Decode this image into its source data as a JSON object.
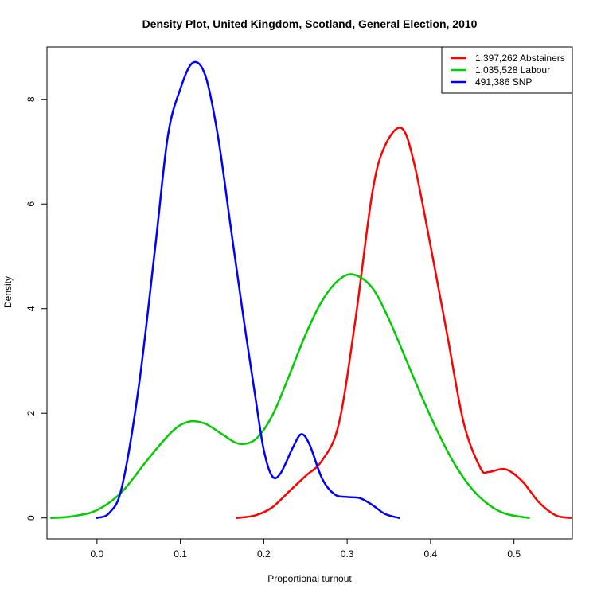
{
  "chart_data": {
    "type": "line",
    "title": "Density Plot, United Kingdom, Scotland, General Election, 2010",
    "xlabel": "Proportional turnout",
    "ylabel": "Density",
    "xlim": [
      -0.06,
      0.57
    ],
    "ylim": [
      -0.4,
      9.0
    ],
    "x_ticks": [
      0.0,
      0.1,
      0.2,
      0.3,
      0.4,
      0.5
    ],
    "x_tick_labels": [
      "0.0",
      "0.1",
      "0.2",
      "0.3",
      "0.4",
      "0.5"
    ],
    "y_ticks": [
      0,
      2,
      4,
      6,
      8
    ],
    "y_tick_labels": [
      "0",
      "2",
      "4",
      "6",
      "8"
    ],
    "grid": false,
    "legend_position": "top-right",
    "series": [
      {
        "name": "1,397,262 Abstainers",
        "color": "#ff0000",
        "points": [
          [
            0.168,
            0.0
          ],
          [
            0.19,
            0.05
          ],
          [
            0.21,
            0.2
          ],
          [
            0.23,
            0.5
          ],
          [
            0.25,
            0.8
          ],
          [
            0.27,
            1.1
          ],
          [
            0.29,
            1.8
          ],
          [
            0.31,
            3.8
          ],
          [
            0.33,
            6.2
          ],
          [
            0.345,
            7.1
          ],
          [
            0.365,
            7.45
          ],
          [
            0.38,
            6.8
          ],
          [
            0.4,
            5.2
          ],
          [
            0.42,
            3.5
          ],
          [
            0.44,
            1.8
          ],
          [
            0.46,
            0.95
          ],
          [
            0.47,
            0.88
          ],
          [
            0.49,
            0.93
          ],
          [
            0.51,
            0.7
          ],
          [
            0.53,
            0.3
          ],
          [
            0.55,
            0.05
          ],
          [
            0.568,
            0.0
          ]
        ]
      },
      {
        "name": "1,035,528 Labour",
        "color": "#00cd00",
        "points": [
          [
            -0.055,
            0.0
          ],
          [
            -0.03,
            0.03
          ],
          [
            0.0,
            0.15
          ],
          [
            0.03,
            0.5
          ],
          [
            0.06,
            1.1
          ],
          [
            0.09,
            1.65
          ],
          [
            0.11,
            1.84
          ],
          [
            0.13,
            1.8
          ],
          [
            0.15,
            1.6
          ],
          [
            0.17,
            1.42
          ],
          [
            0.19,
            1.5
          ],
          [
            0.21,
            1.95
          ],
          [
            0.23,
            2.7
          ],
          [
            0.25,
            3.5
          ],
          [
            0.27,
            4.15
          ],
          [
            0.29,
            4.55
          ],
          [
            0.308,
            4.65
          ],
          [
            0.33,
            4.4
          ],
          [
            0.35,
            3.8
          ],
          [
            0.37,
            3.05
          ],
          [
            0.39,
            2.3
          ],
          [
            0.41,
            1.6
          ],
          [
            0.43,
            1.0
          ],
          [
            0.45,
            0.55
          ],
          [
            0.47,
            0.25
          ],
          [
            0.49,
            0.08
          ],
          [
            0.518,
            0.0
          ]
        ]
      },
      {
        "name": "491,386 SNP",
        "color": "#0000ff",
        "points": [
          [
            0.0,
            0.0
          ],
          [
            0.015,
            0.1
          ],
          [
            0.03,
            0.6
          ],
          [
            0.05,
            2.5
          ],
          [
            0.07,
            5.2
          ],
          [
            0.085,
            7.3
          ],
          [
            0.1,
            8.2
          ],
          [
            0.115,
            8.7
          ],
          [
            0.13,
            8.45
          ],
          [
            0.145,
            7.3
          ],
          [
            0.16,
            5.6
          ],
          [
            0.175,
            3.9
          ],
          [
            0.19,
            2.3
          ],
          [
            0.2,
            1.3
          ],
          [
            0.21,
            0.8
          ],
          [
            0.22,
            0.85
          ],
          [
            0.235,
            1.35
          ],
          [
            0.245,
            1.6
          ],
          [
            0.255,
            1.4
          ],
          [
            0.27,
            0.75
          ],
          [
            0.285,
            0.45
          ],
          [
            0.3,
            0.4
          ],
          [
            0.315,
            0.38
          ],
          [
            0.33,
            0.25
          ],
          [
            0.345,
            0.08
          ],
          [
            0.362,
            0.0
          ]
        ]
      }
    ]
  }
}
